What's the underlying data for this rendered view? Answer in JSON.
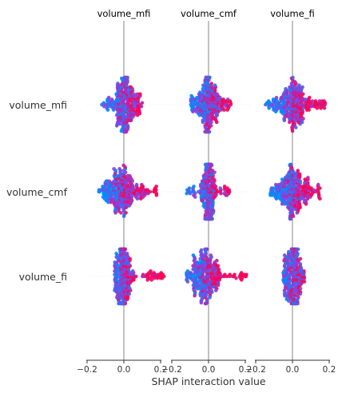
{
  "chart_data": {
    "type": "scatter",
    "subtype": "shap-interaction-beeswarm",
    "xlabel": "SHAP interaction value",
    "features": [
      "volume_mfi",
      "volume_cmf",
      "volume_fi"
    ],
    "columns": [
      "volume_mfi",
      "volume_cmf",
      "volume_fi"
    ],
    "rows": [
      "volume_mfi",
      "volume_cmf",
      "volume_fi"
    ],
    "xlim": [
      -0.23,
      0.23
    ],
    "xticks": [
      -0.2,
      0.0,
      0.2
    ],
    "xtick_labels": [
      "−0.2",
      "0.0",
      "0.2"
    ],
    "colors": {
      "low": "#008bfb",
      "mid": "#8a3fe0",
      "high": "#ff0052",
      "zero_line": "#999999",
      "row_line": "#eeeeee",
      "axis": "#333333"
    },
    "cells": [
      {
        "row": "volume_mfi",
        "col": "volume_mfi",
        "center": 0.005,
        "spread": 0.03,
        "tail_left": -0.12,
        "tail_right": 0.1,
        "points": 260
      },
      {
        "row": "volume_mfi",
        "col": "volume_cmf",
        "center": 0.0,
        "spread": 0.035,
        "tail_left": -0.1,
        "tail_right": 0.13,
        "points": 260
      },
      {
        "row": "volume_mfi",
        "col": "volume_fi",
        "center": 0.0,
        "spread": 0.045,
        "tail_left": -0.15,
        "tail_right": 0.18,
        "points": 280
      },
      {
        "row": "volume_cmf",
        "col": "volume_mfi",
        "center": -0.01,
        "spread": 0.05,
        "tail_left": -0.14,
        "tail_right": 0.18,
        "points": 280
      },
      {
        "row": "volume_cmf",
        "col": "volume_cmf",
        "center": 0.0,
        "spread": 0.02,
        "tail_left": -0.12,
        "tail_right": 0.12,
        "points": 240
      },
      {
        "row": "volume_cmf",
        "col": "volume_fi",
        "center": 0.0,
        "spread": 0.04,
        "tail_left": -0.12,
        "tail_right": 0.15,
        "points": 280
      },
      {
        "row": "volume_fi",
        "col": "volume_mfi",
        "center": 0.0,
        "spread": 0.025,
        "tail_left": -0.05,
        "tail_right": 0.22,
        "points": 260
      },
      {
        "row": "volume_fi",
        "col": "volume_cmf",
        "center": -0.01,
        "spread": 0.04,
        "tail_left": -0.12,
        "tail_right": 0.22,
        "points": 280
      },
      {
        "row": "volume_fi",
        "col": "volume_fi",
        "center": 0.0,
        "spread": 0.025,
        "tail_left": -0.05,
        "tail_right": 0.07,
        "points": 240
      }
    ]
  }
}
